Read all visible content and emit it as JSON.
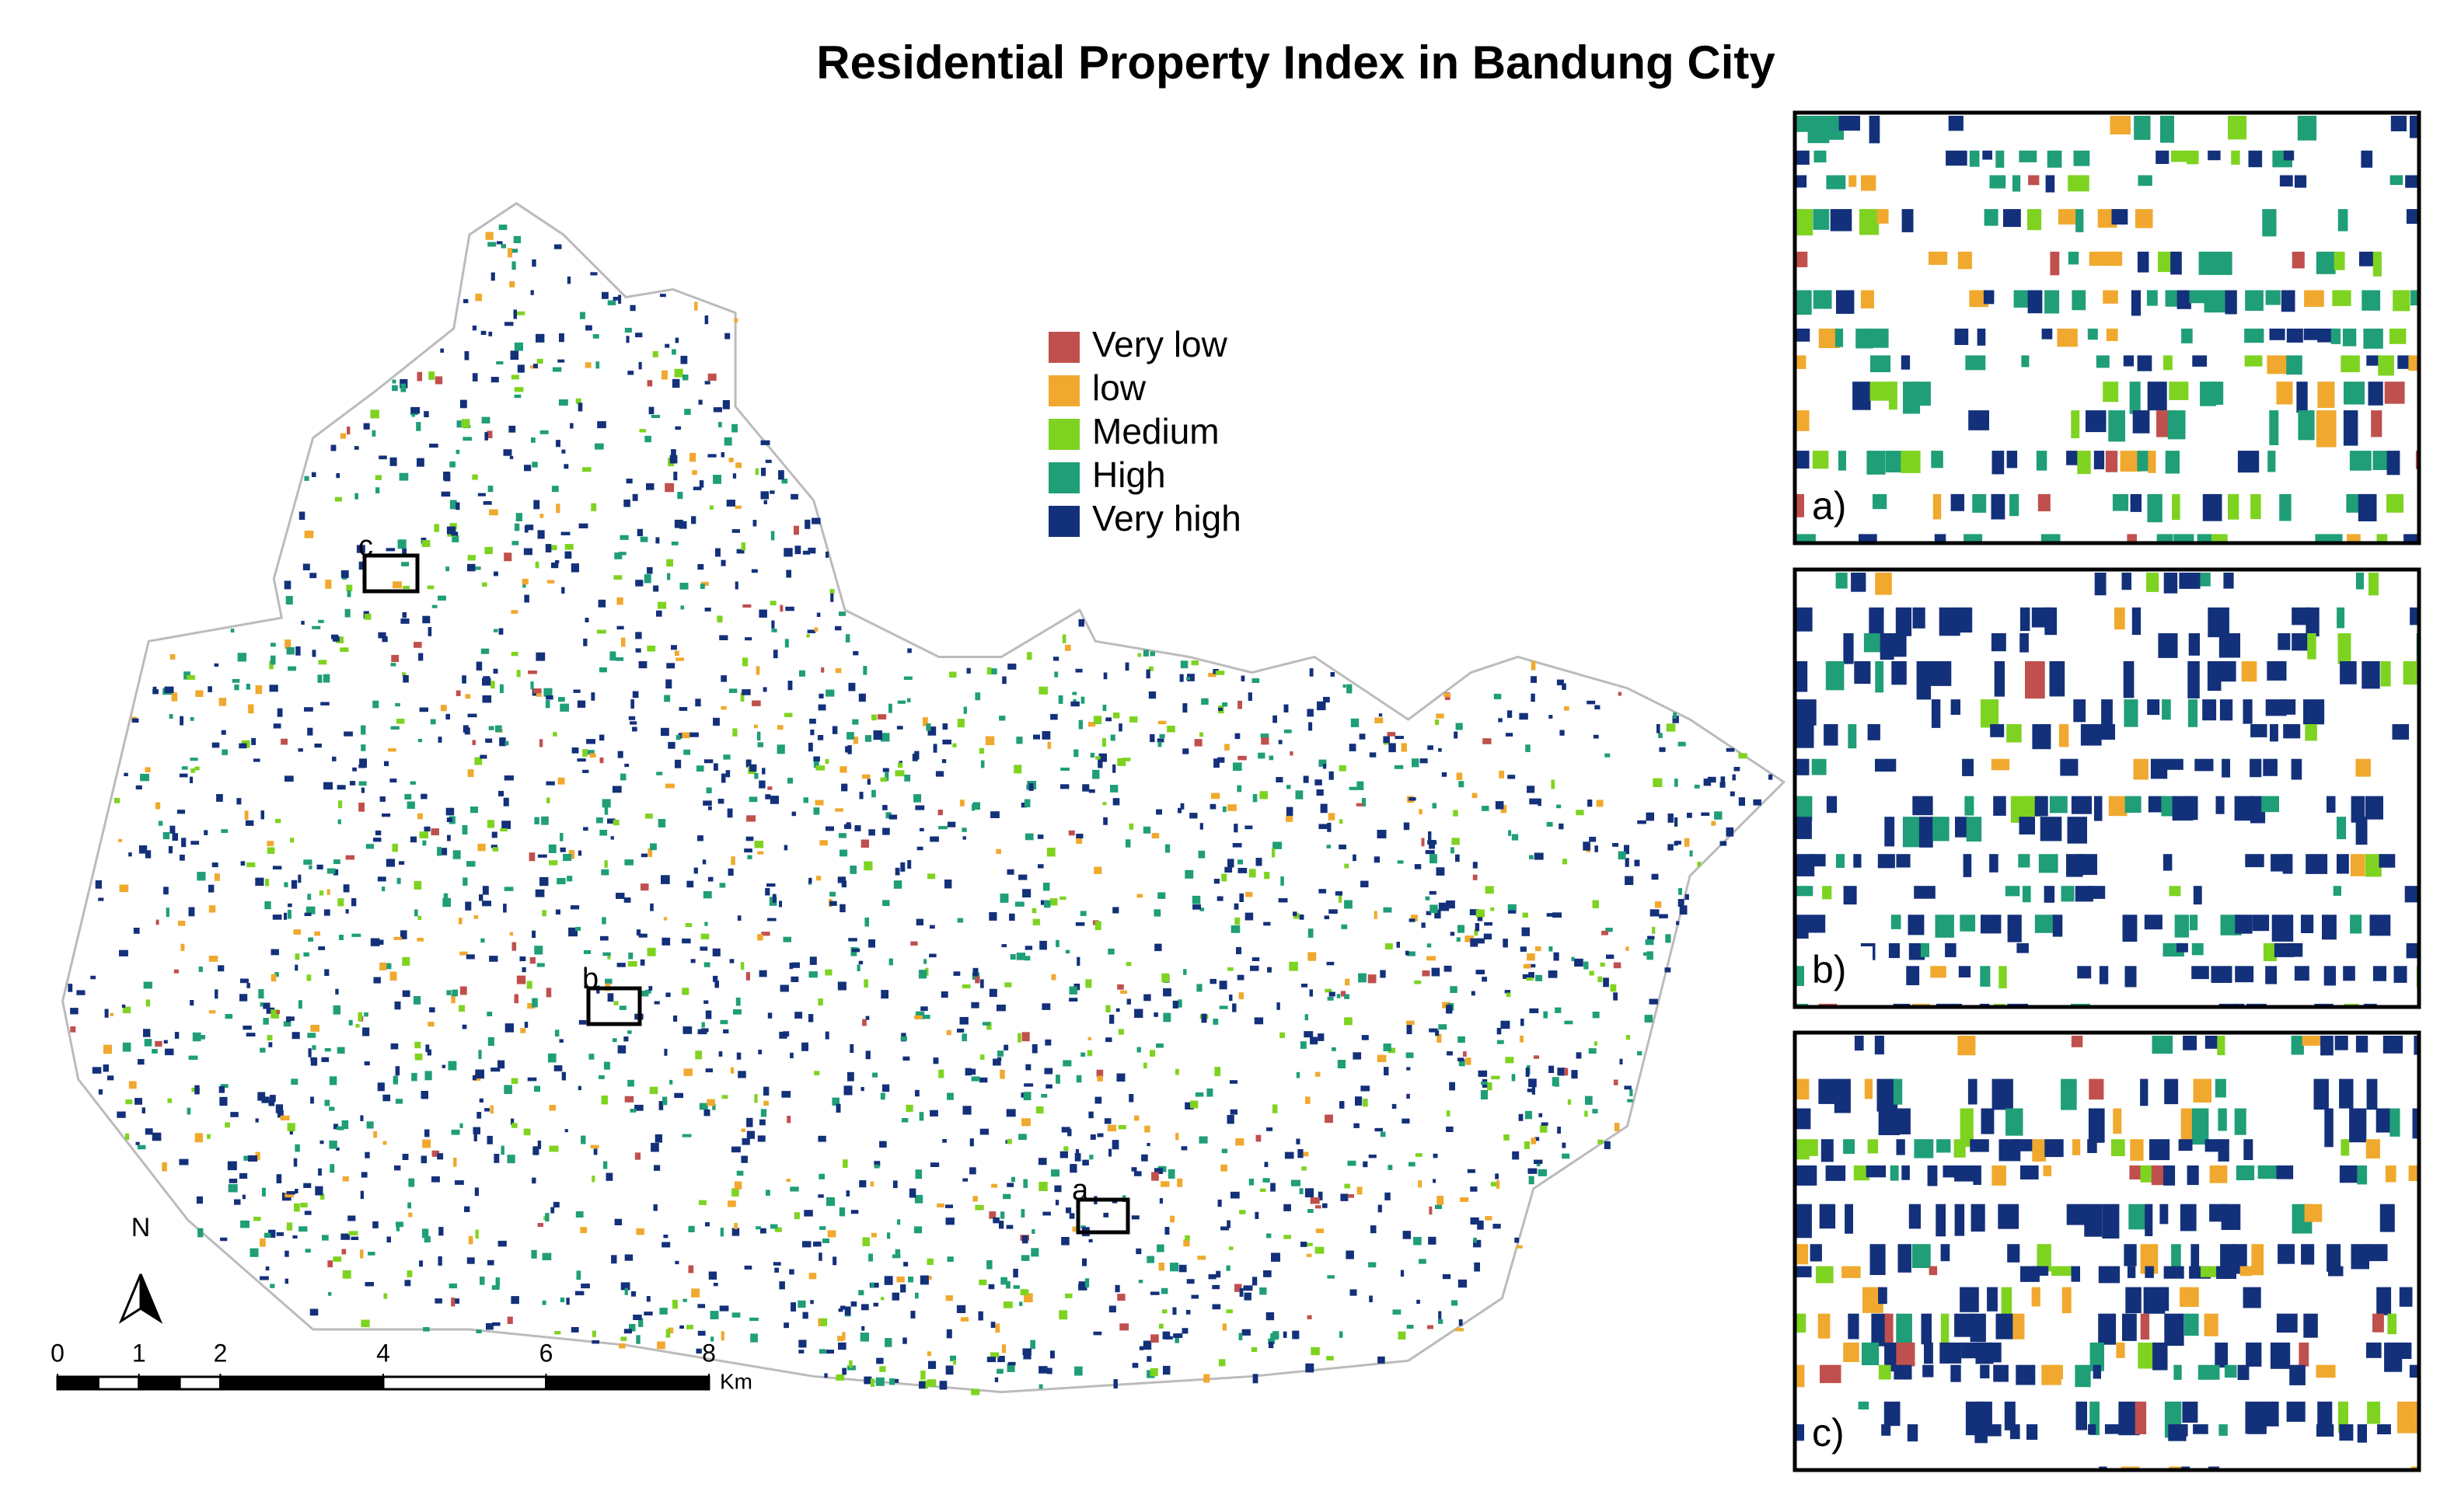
{
  "title": "Residential Property Index in Bandung City",
  "legend": [
    {
      "label": "Very low",
      "color": "#c0504d"
    },
    {
      "label": "low",
      "color": "#f0a92e"
    },
    {
      "label": "Medium",
      "color": "#7ed321"
    },
    {
      "label": "High",
      "color": "#1f9e78"
    },
    {
      "label": "Very high",
      "color": "#13307a"
    }
  ],
  "map_boxes": [
    "a",
    "b",
    "c"
  ],
  "insets": [
    "a)",
    "b)",
    "c)"
  ],
  "north": "N",
  "scale_bar": {
    "ticks": [
      0,
      1,
      2,
      4,
      6,
      8
    ],
    "unit": "Km"
  }
}
